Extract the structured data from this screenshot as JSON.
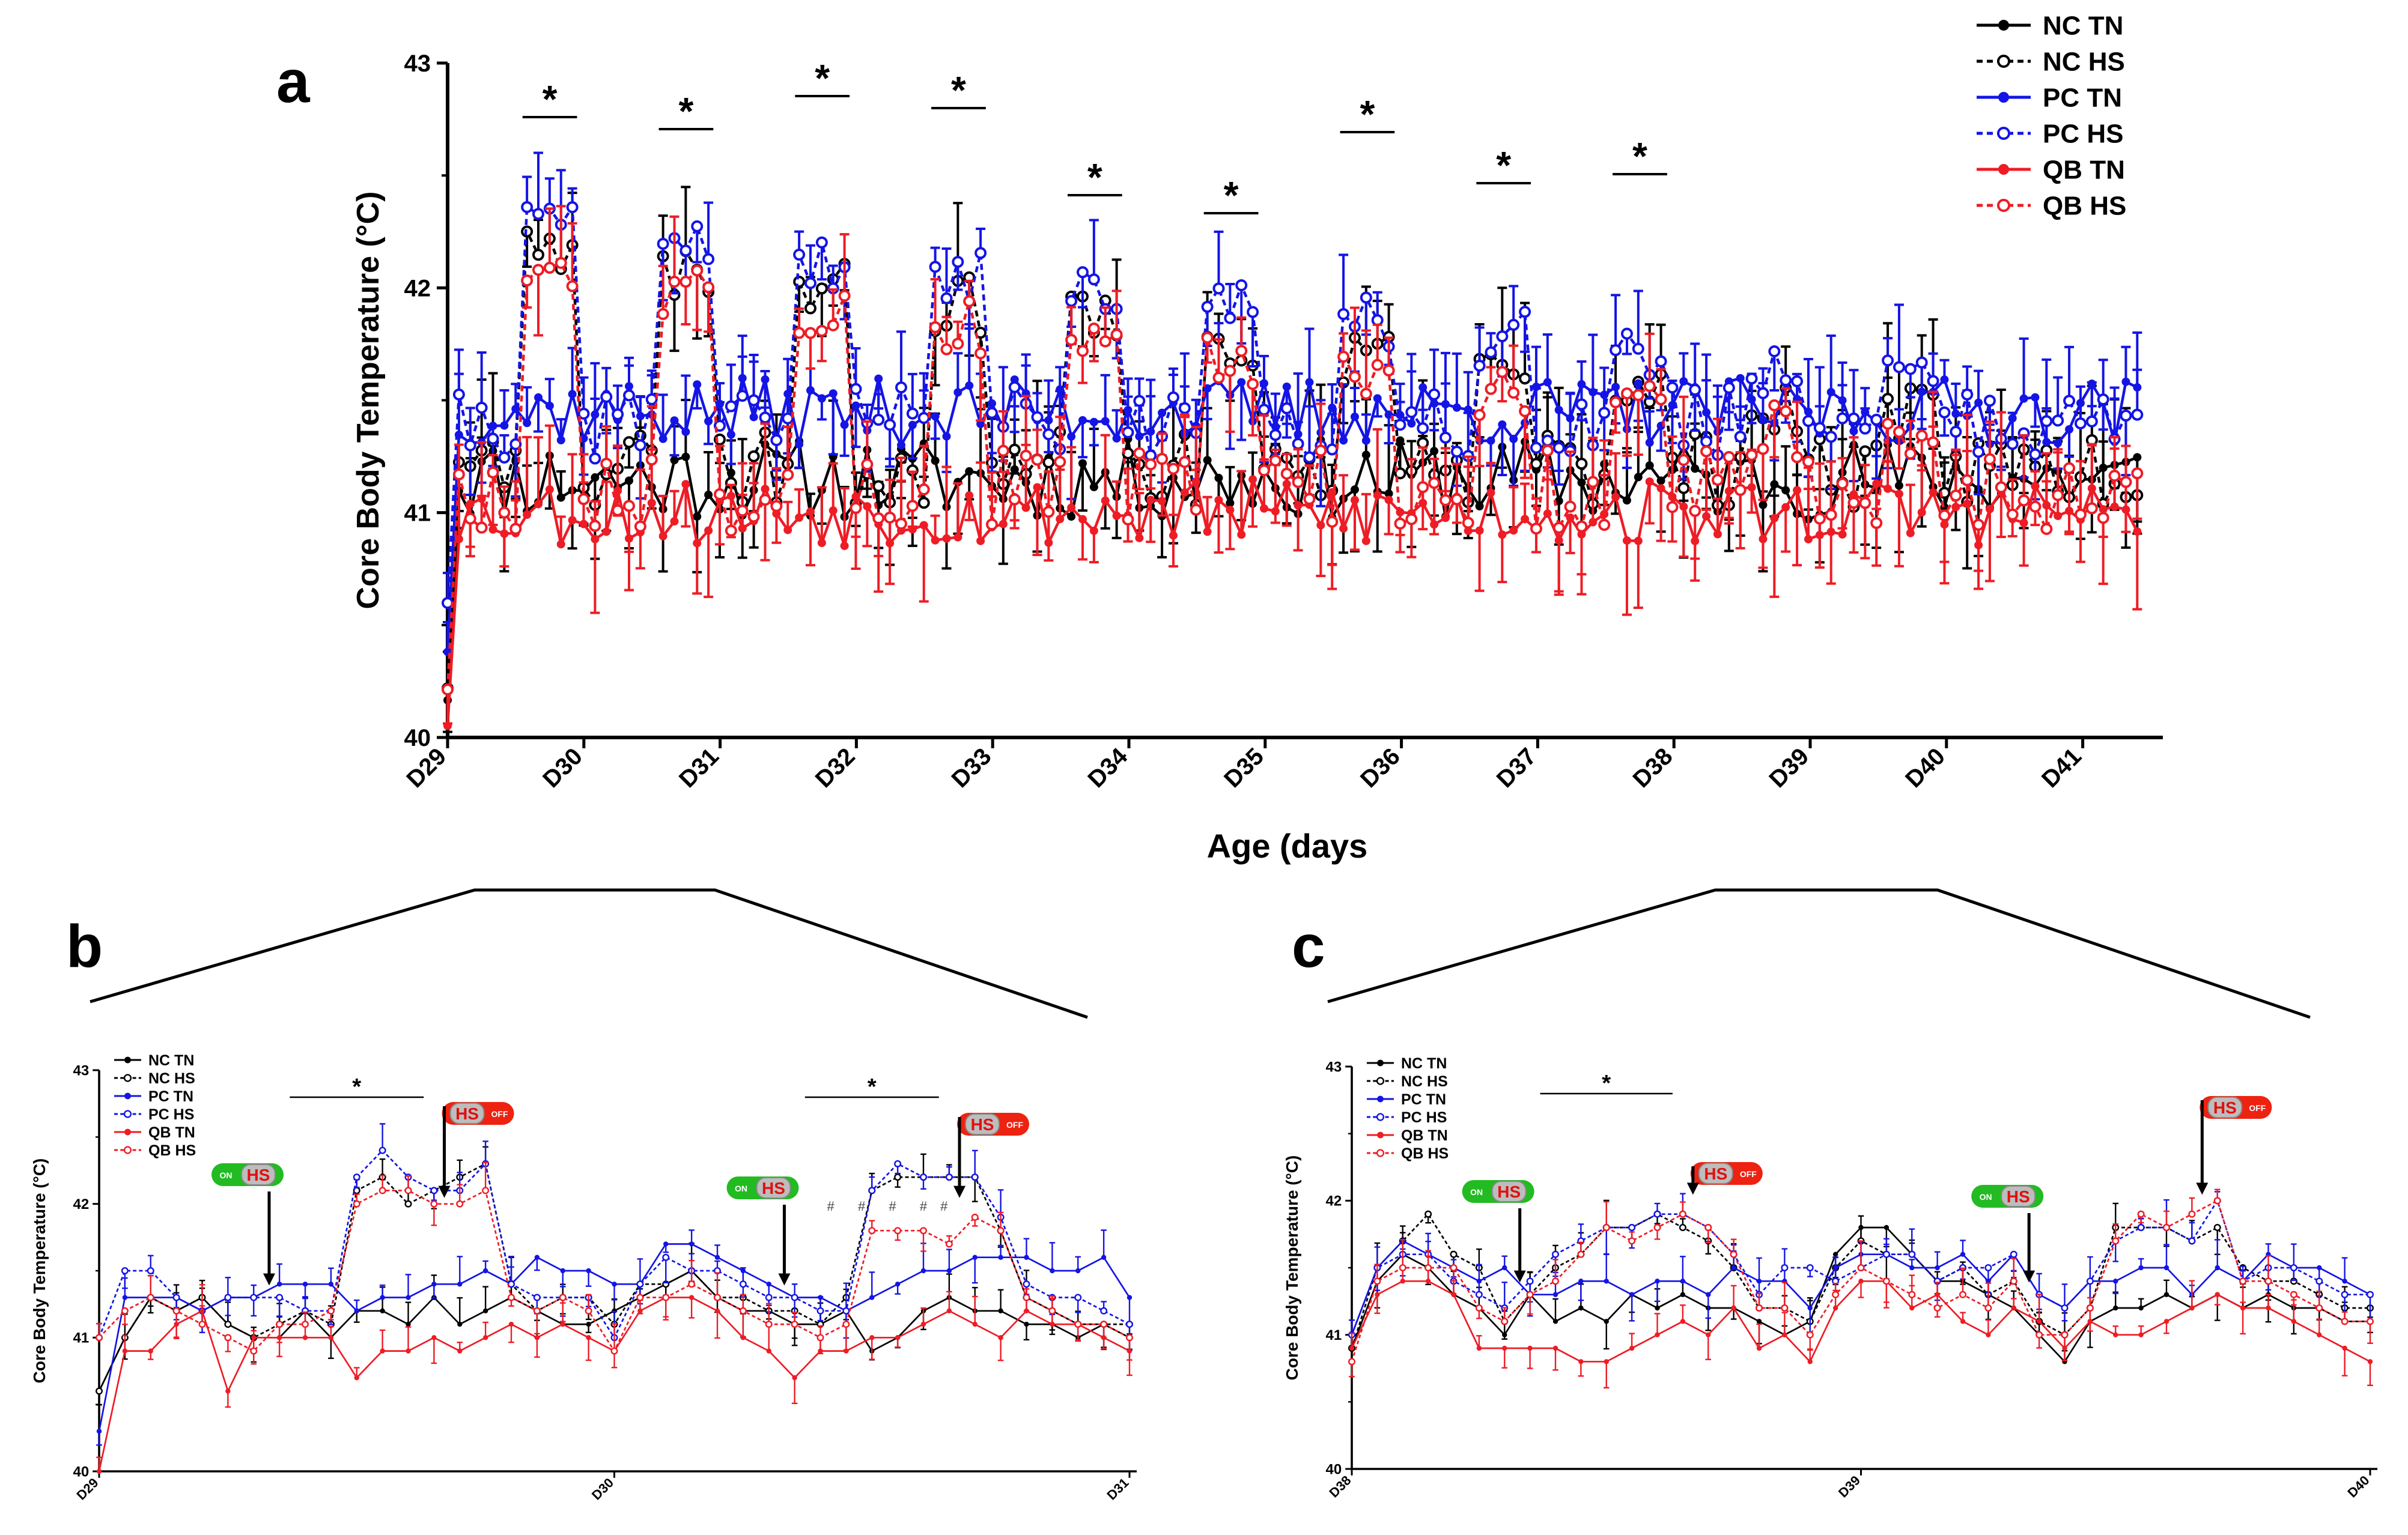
{
  "colors": {
    "NC": "#000000",
    "PC": "#1414e6",
    "QB": "#ee1c25",
    "on_green": "#22bb22",
    "off_red": "#ee2211",
    "badge_grey": "#bdbdbd"
  },
  "badges": {
    "on_label": "ON",
    "off_label": "OFF",
    "hs_label": "HS"
  },
  "chart_data": [
    {
      "panel": "a",
      "type": "line",
      "title": "",
      "xlabel": "Age (days",
      "ylabel": "Core Body Temperature (°C)",
      "ylim": [
        40,
        43
      ],
      "yticks": [
        "40",
        "41",
        "42",
        "43"
      ],
      "xlim": [
        29,
        41.5
      ],
      "xtick_values": [
        29,
        30,
        31,
        32,
        33,
        34,
        35,
        36,
        37,
        38,
        39,
        40,
        41
      ],
      "xticks": [
        "D29",
        "D30",
        "D31",
        "D32",
        "D33",
        "D34",
        "D35",
        "D36",
        "D37",
        "D38",
        "D39",
        "D40",
        "D41"
      ],
      "legend_position": "top-right",
      "significance": [
        {
          "x": [
            29.55,
            29.95
          ],
          "label": "*"
        },
        {
          "x": [
            30.55,
            30.95
          ],
          "label": "*"
        },
        {
          "x": [
            31.55,
            31.95
          ],
          "label": "*"
        },
        {
          "x": [
            32.55,
            32.95
          ],
          "label": "*"
        },
        {
          "x": [
            33.55,
            33.95
          ],
          "label": "*"
        },
        {
          "x": [
            34.55,
            34.95
          ],
          "label": "*"
        },
        {
          "x": [
            35.55,
            35.95
          ],
          "label": "*"
        },
        {
          "x": [
            36.55,
            36.95
          ],
          "label": "*"
        },
        {
          "x": [
            37.55,
            37.95
          ],
          "label": "*"
        }
      ],
      "series": [
        {
          "name": "NC TN",
          "group": "NC",
          "style": "solid",
          "marker": "filled",
          "baseline": 41.15,
          "peak": 41.2,
          "amp": 0.18,
          "err": 0.22,
          "seed": 11
        },
        {
          "name": "NC HS",
          "group": "NC",
          "style": "dashed",
          "marker": "open",
          "baseline": 41.2,
          "peak": 42.15,
          "amp": 0.18,
          "err": 0.25,
          "seed": 23
        },
        {
          "name": "PC TN",
          "group": "PC",
          "style": "solid",
          "marker": "filled",
          "baseline": 41.45,
          "peak": 41.5,
          "amp": 0.15,
          "err": 0.2,
          "seed": 37
        },
        {
          "name": "PC HS",
          "group": "PC",
          "style": "dashed",
          "marker": "open",
          "baseline": 41.4,
          "peak": 42.25,
          "amp": 0.16,
          "err": 0.2,
          "seed": 41
        },
        {
          "name": "QB TN",
          "group": "QB",
          "style": "solid",
          "marker": "filled",
          "baseline": 41.0,
          "peak": 41.05,
          "amp": 0.15,
          "err": 0.25,
          "seed": 53
        },
        {
          "name": "QB HS",
          "group": "QB",
          "style": "dashed",
          "marker": "open",
          "baseline": 41.1,
          "peak": 42.05,
          "amp": 0.18,
          "err": 0.22,
          "seed": 67
        }
      ]
    },
    {
      "panel": "b",
      "type": "line",
      "title": "",
      "xlabel": "",
      "ylabel": "Core Body Temperature (°C)",
      "ylim": [
        40,
        43
      ],
      "yticks": [
        "40",
        "41",
        "42",
        "43"
      ],
      "xlim": [
        29,
        31
      ],
      "xtick_values": [
        29,
        30,
        31
      ],
      "xticks": [
        "D29",
        "D30",
        "D31"
      ],
      "legend_position": "top-left",
      "hs_on": [
        29.33,
        30.33
      ],
      "hs_off": [
        29.67,
        30.67
      ],
      "significance": [
        {
          "x": [
            29.37,
            29.63
          ],
          "label": "*"
        },
        {
          "x": [
            30.37,
            30.63
          ],
          "label": "*"
        }
      ],
      "hash_marks": [
        30.42,
        30.48,
        30.54,
        30.6,
        30.64
      ],
      "series": [
        {
          "name": "NC TN",
          "group": "NC",
          "style": "solid",
          "marker": "filled",
          "values": [
            40.6,
            41.0,
            41.3,
            41.2,
            41.3,
            41.1,
            41.0,
            41.0,
            41.2,
            41.0,
            41.2,
            41.2,
            41.1,
            41.3,
            41.1,
            41.2,
            41.3,
            41.2,
            41.1,
            41.1,
            41.2,
            41.3,
            41.4,
            41.5,
            41.3,
            41.2,
            41.2,
            41.1,
            41.1,
            41.2,
            40.9,
            41.0,
            41.2,
            41.3,
            41.2,
            41.2,
            41.1,
            41.1,
            41.0,
            41.1,
            41.0
          ]
        },
        {
          "name": "NC HS",
          "group": "NC",
          "style": "dashed",
          "marker": "open",
          "values": [
            40.6,
            41.0,
            41.3,
            41.2,
            41.3,
            41.1,
            41.0,
            41.1,
            41.2,
            41.1,
            42.1,
            42.2,
            42.0,
            42.1,
            42.2,
            42.3,
            41.4,
            41.2,
            41.3,
            41.3,
            41.1,
            41.4,
            41.4,
            41.5,
            41.3,
            41.3,
            41.2,
            41.2,
            41.1,
            41.3,
            42.1,
            42.2,
            42.2,
            42.2,
            42.2,
            41.8,
            41.3,
            41.2,
            41.1,
            41.1,
            41.1
          ]
        },
        {
          "name": "PC TN",
          "group": "PC",
          "style": "solid",
          "marker": "filled",
          "values": [
            40.3,
            41.3,
            41.3,
            41.3,
            41.2,
            41.3,
            41.3,
            41.4,
            41.4,
            41.4,
            41.2,
            41.3,
            41.3,
            41.4,
            41.4,
            41.5,
            41.4,
            41.6,
            41.5,
            41.5,
            41.4,
            41.4,
            41.7,
            41.7,
            41.6,
            41.5,
            41.4,
            41.3,
            41.3,
            41.2,
            41.3,
            41.4,
            41.5,
            41.5,
            41.6,
            41.6,
            41.6,
            41.5,
            41.5,
            41.6,
            41.3
          ]
        },
        {
          "name": "PC HS",
          "group": "PC",
          "style": "dashed",
          "marker": "open",
          "values": [
            41.0,
            41.5,
            41.5,
            41.3,
            41.2,
            41.3,
            41.3,
            41.3,
            41.2,
            41.2,
            42.2,
            42.4,
            42.2,
            42.1,
            42.1,
            42.3,
            41.4,
            41.3,
            41.3,
            41.3,
            41.0,
            41.4,
            41.6,
            41.5,
            41.5,
            41.4,
            41.3,
            41.3,
            41.2,
            41.2,
            42.1,
            42.3,
            42.2,
            42.2,
            42.2,
            41.9,
            41.4,
            41.3,
            41.3,
            41.2,
            41.1
          ]
        },
        {
          "name": "QB TN",
          "group": "QB",
          "style": "solid",
          "marker": "filled",
          "values": [
            40.0,
            40.9,
            40.9,
            41.1,
            41.2,
            40.6,
            41.0,
            41.0,
            41.0,
            41.0,
            40.7,
            40.9,
            40.9,
            41.0,
            40.9,
            41.0,
            41.1,
            41.0,
            41.1,
            41.0,
            40.9,
            41.2,
            41.3,
            41.3,
            41.2,
            41.0,
            40.9,
            40.7,
            40.9,
            40.9,
            41.0,
            41.0,
            41.1,
            41.2,
            41.1,
            41.0,
            41.2,
            41.1,
            41.1,
            41.0,
            40.9
          ]
        },
        {
          "name": "QB HS",
          "group": "QB",
          "style": "dashed",
          "marker": "open",
          "values": [
            41.0,
            41.2,
            41.3,
            41.2,
            41.1,
            41.0,
            40.9,
            41.1,
            41.1,
            41.2,
            42.0,
            42.1,
            42.1,
            42.0,
            42.0,
            42.1,
            41.3,
            41.2,
            41.3,
            41.2,
            40.9,
            41.3,
            41.3,
            41.4,
            41.3,
            41.2,
            41.1,
            41.1,
            41.0,
            41.1,
            41.8,
            41.8,
            41.8,
            41.7,
            41.9,
            41.8,
            41.3,
            41.2,
            41.1,
            41.1,
            41.0
          ]
        }
      ]
    },
    {
      "panel": "c",
      "type": "line",
      "title": "",
      "xlabel": "",
      "ylabel": "Core Body Temperature (°C)",
      "ylim": [
        40,
        43
      ],
      "yticks": [
        "40",
        "41",
        "42",
        "43"
      ],
      "xlim": [
        38,
        40
      ],
      "xtick_values": [
        38,
        39,
        40
      ],
      "xticks": [
        "D38",
        "D39",
        "D40"
      ],
      "legend_position": "top-left",
      "hs_on": [
        38.33,
        39.33
      ],
      "hs_off": [
        38.67,
        39.67
      ],
      "significance": [
        {
          "x": [
            38.37,
            38.63
          ],
          "label": "*"
        }
      ],
      "hash_marks": [],
      "series": [
        {
          "name": "NC TN",
          "group": "NC",
          "style": "solid",
          "marker": "filled",
          "values": [
            40.9,
            41.4,
            41.6,
            41.5,
            41.3,
            41.2,
            41.0,
            41.3,
            41.1,
            41.2,
            41.1,
            41.3,
            41.2,
            41.3,
            41.2,
            41.2,
            41.1,
            41.0,
            41.1,
            41.6,
            41.8,
            41.8,
            41.6,
            41.4,
            41.4,
            41.3,
            41.2,
            41.0,
            40.8,
            41.1,
            41.2,
            41.2,
            41.3,
            41.2,
            41.3,
            41.2,
            41.3,
            41.2,
            41.2,
            41.1,
            41.1
          ]
        },
        {
          "name": "NC HS",
          "group": "NC",
          "style": "dashed",
          "marker": "open",
          "values": [
            40.9,
            41.5,
            41.7,
            41.9,
            41.6,
            41.5,
            41.1,
            41.3,
            41.5,
            41.6,
            41.8,
            41.8,
            41.9,
            41.8,
            41.7,
            41.5,
            41.2,
            41.2,
            41.1,
            41.5,
            41.7,
            41.6,
            41.6,
            41.4,
            41.5,
            41.3,
            41.4,
            41.1,
            41.0,
            41.2,
            41.8,
            41.8,
            41.8,
            41.7,
            41.8,
            41.5,
            41.4,
            41.4,
            41.3,
            41.2,
            41.2
          ]
        },
        {
          "name": "PC TN",
          "group": "PC",
          "style": "solid",
          "marker": "filled",
          "values": [
            41.0,
            41.5,
            41.7,
            41.6,
            41.5,
            41.4,
            41.5,
            41.3,
            41.3,
            41.4,
            41.4,
            41.3,
            41.4,
            41.4,
            41.3,
            41.5,
            41.4,
            41.4,
            41.2,
            41.5,
            41.6,
            41.6,
            41.5,
            41.5,
            41.6,
            41.4,
            41.6,
            41.3,
            41.2,
            41.4,
            41.4,
            41.5,
            41.5,
            41.3,
            41.5,
            41.4,
            41.6,
            41.5,
            41.5,
            41.4,
            41.3
          ]
        },
        {
          "name": "PC HS",
          "group": "PC",
          "style": "dashed",
          "marker": "open",
          "values": [
            41.0,
            41.5,
            41.6,
            41.6,
            41.4,
            41.3,
            41.2,
            41.4,
            41.6,
            41.7,
            41.8,
            41.8,
            41.9,
            41.9,
            41.8,
            41.6,
            41.3,
            41.5,
            41.5,
            41.4,
            41.5,
            41.6,
            41.6,
            41.4,
            41.5,
            41.5,
            41.6,
            41.3,
            41.2,
            41.4,
            41.7,
            41.8,
            41.8,
            41.7,
            42.0,
            41.4,
            41.5,
            41.5,
            41.4,
            41.3,
            41.3
          ]
        },
        {
          "name": "QB TN",
          "group": "QB",
          "style": "solid",
          "marker": "filled",
          "values": [
            40.9,
            41.3,
            41.4,
            41.4,
            41.3,
            40.9,
            40.9,
            40.9,
            40.9,
            40.8,
            40.8,
            40.9,
            41.0,
            41.1,
            41.0,
            41.2,
            40.9,
            41.0,
            40.8,
            41.2,
            41.4,
            41.4,
            41.2,
            41.3,
            41.1,
            41.0,
            41.2,
            41.1,
            40.9,
            41.1,
            41.0,
            41.0,
            41.1,
            41.2,
            41.3,
            41.2,
            41.2,
            41.1,
            41.0,
            40.9,
            40.8
          ]
        },
        {
          "name": "QB HS",
          "group": "QB",
          "style": "dashed",
          "marker": "open",
          "values": [
            40.8,
            41.4,
            41.5,
            41.5,
            41.5,
            41.2,
            41.1,
            41.3,
            41.4,
            41.6,
            41.8,
            41.7,
            41.8,
            41.9,
            41.8,
            41.6,
            41.2,
            41.2,
            41.0,
            41.3,
            41.5,
            41.4,
            41.3,
            41.2,
            41.3,
            41.2,
            41.4,
            41.0,
            41.0,
            41.2,
            41.7,
            41.9,
            41.8,
            41.9,
            42.0,
            41.4,
            41.4,
            41.3,
            41.2,
            41.1,
            41.1
          ]
        }
      ]
    }
  ]
}
